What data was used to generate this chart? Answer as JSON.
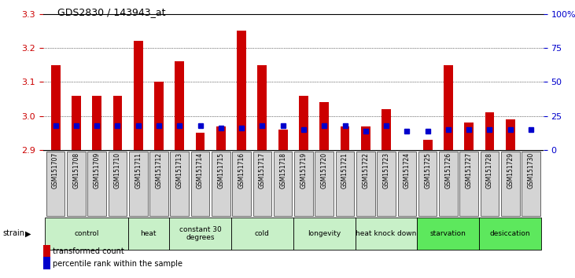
{
  "title": "GDS2830 / 143943_at",
  "samples": [
    "GSM151707",
    "GSM151708",
    "GSM151709",
    "GSM151710",
    "GSM151711",
    "GSM151712",
    "GSM151713",
    "GSM151714",
    "GSM151715",
    "GSM151716",
    "GSM151717",
    "GSM151718",
    "GSM151719",
    "GSM151720",
    "GSM151721",
    "GSM151722",
    "GSM151723",
    "GSM151724",
    "GSM151725",
    "GSM151726",
    "GSM151727",
    "GSM151728",
    "GSM151729",
    "GSM151730"
  ],
  "transformed_count": [
    3.15,
    3.06,
    3.06,
    3.06,
    3.22,
    3.1,
    3.16,
    2.95,
    2.97,
    3.25,
    3.15,
    2.96,
    3.06,
    3.04,
    2.97,
    2.97,
    3.02,
    2.9,
    2.93,
    3.15,
    2.98,
    3.01,
    2.99,
    2.9
  ],
  "percentile_rank": [
    18,
    18,
    18,
    18,
    18,
    18,
    18,
    18,
    16,
    16,
    18,
    18,
    15,
    18,
    18,
    14,
    18,
    14,
    14,
    15,
    15,
    15,
    15,
    15
  ],
  "groups": [
    {
      "label": "control",
      "start": 0,
      "end": 4,
      "color": "#c8f0c8"
    },
    {
      "label": "heat",
      "start": 4,
      "end": 6,
      "color": "#c8f0c8"
    },
    {
      "label": "constant 30\ndegrees",
      "start": 6,
      "end": 9,
      "color": "#c8f0c8"
    },
    {
      "label": "cold",
      "start": 9,
      "end": 12,
      "color": "#c8f0c8"
    },
    {
      "label": "longevity",
      "start": 12,
      "end": 15,
      "color": "#c8f0c8"
    },
    {
      "label": "heat knock down",
      "start": 15,
      "end": 18,
      "color": "#c8f0c8"
    },
    {
      "label": "starvation",
      "start": 18,
      "end": 21,
      "color": "#5de85d"
    },
    {
      "label": "desiccation",
      "start": 21,
      "end": 24,
      "color": "#5de85d"
    }
  ],
  "ylim_left": [
    2.9,
    3.3
  ],
  "ylim_right": [
    0,
    100
  ],
  "yticks_left": [
    2.9,
    3.0,
    3.1,
    3.2,
    3.3
  ],
  "yticks_right": [
    0,
    25,
    50,
    75,
    100
  ],
  "bar_color": "#cc0000",
  "dot_color": "#0000cc",
  "bar_width": 0.45,
  "baseline": 2.9,
  "background_color": "#ffffff",
  "tick_label_color_left": "#cc0000",
  "tick_label_color_right": "#0000cc",
  "group_border_color": "#000000",
  "sample_bg_color": "#d4d4d4"
}
